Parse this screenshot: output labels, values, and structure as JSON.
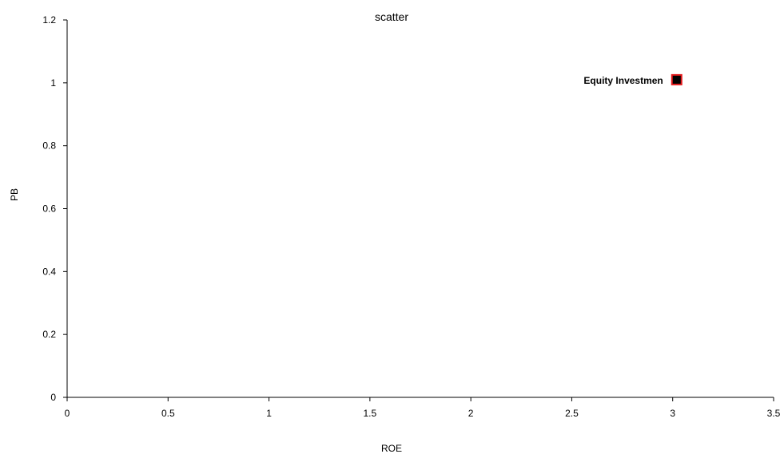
{
  "chart_data": {
    "type": "scatter",
    "title": "scatter",
    "xlabel": "ROE",
    "ylabel": "PB",
    "xlim": [
      0,
      3.5
    ],
    "ylim": [
      0,
      1.2
    ],
    "x_ticks": [
      "0",
      "0.5",
      "1",
      "1.5",
      "2",
      "2.5",
      "3",
      "3.5"
    ],
    "y_ticks": [
      "0",
      "0.2",
      "0.4",
      "0.6",
      "0.8",
      "1",
      "1.2"
    ],
    "grid": false,
    "legend": "none",
    "points": [
      {
        "label": "Equity Investmen",
        "x": 3.02,
        "y": 1.01,
        "marker": "square",
        "fill_color": "#000000",
        "edge_color": "#e31a1c"
      }
    ]
  }
}
